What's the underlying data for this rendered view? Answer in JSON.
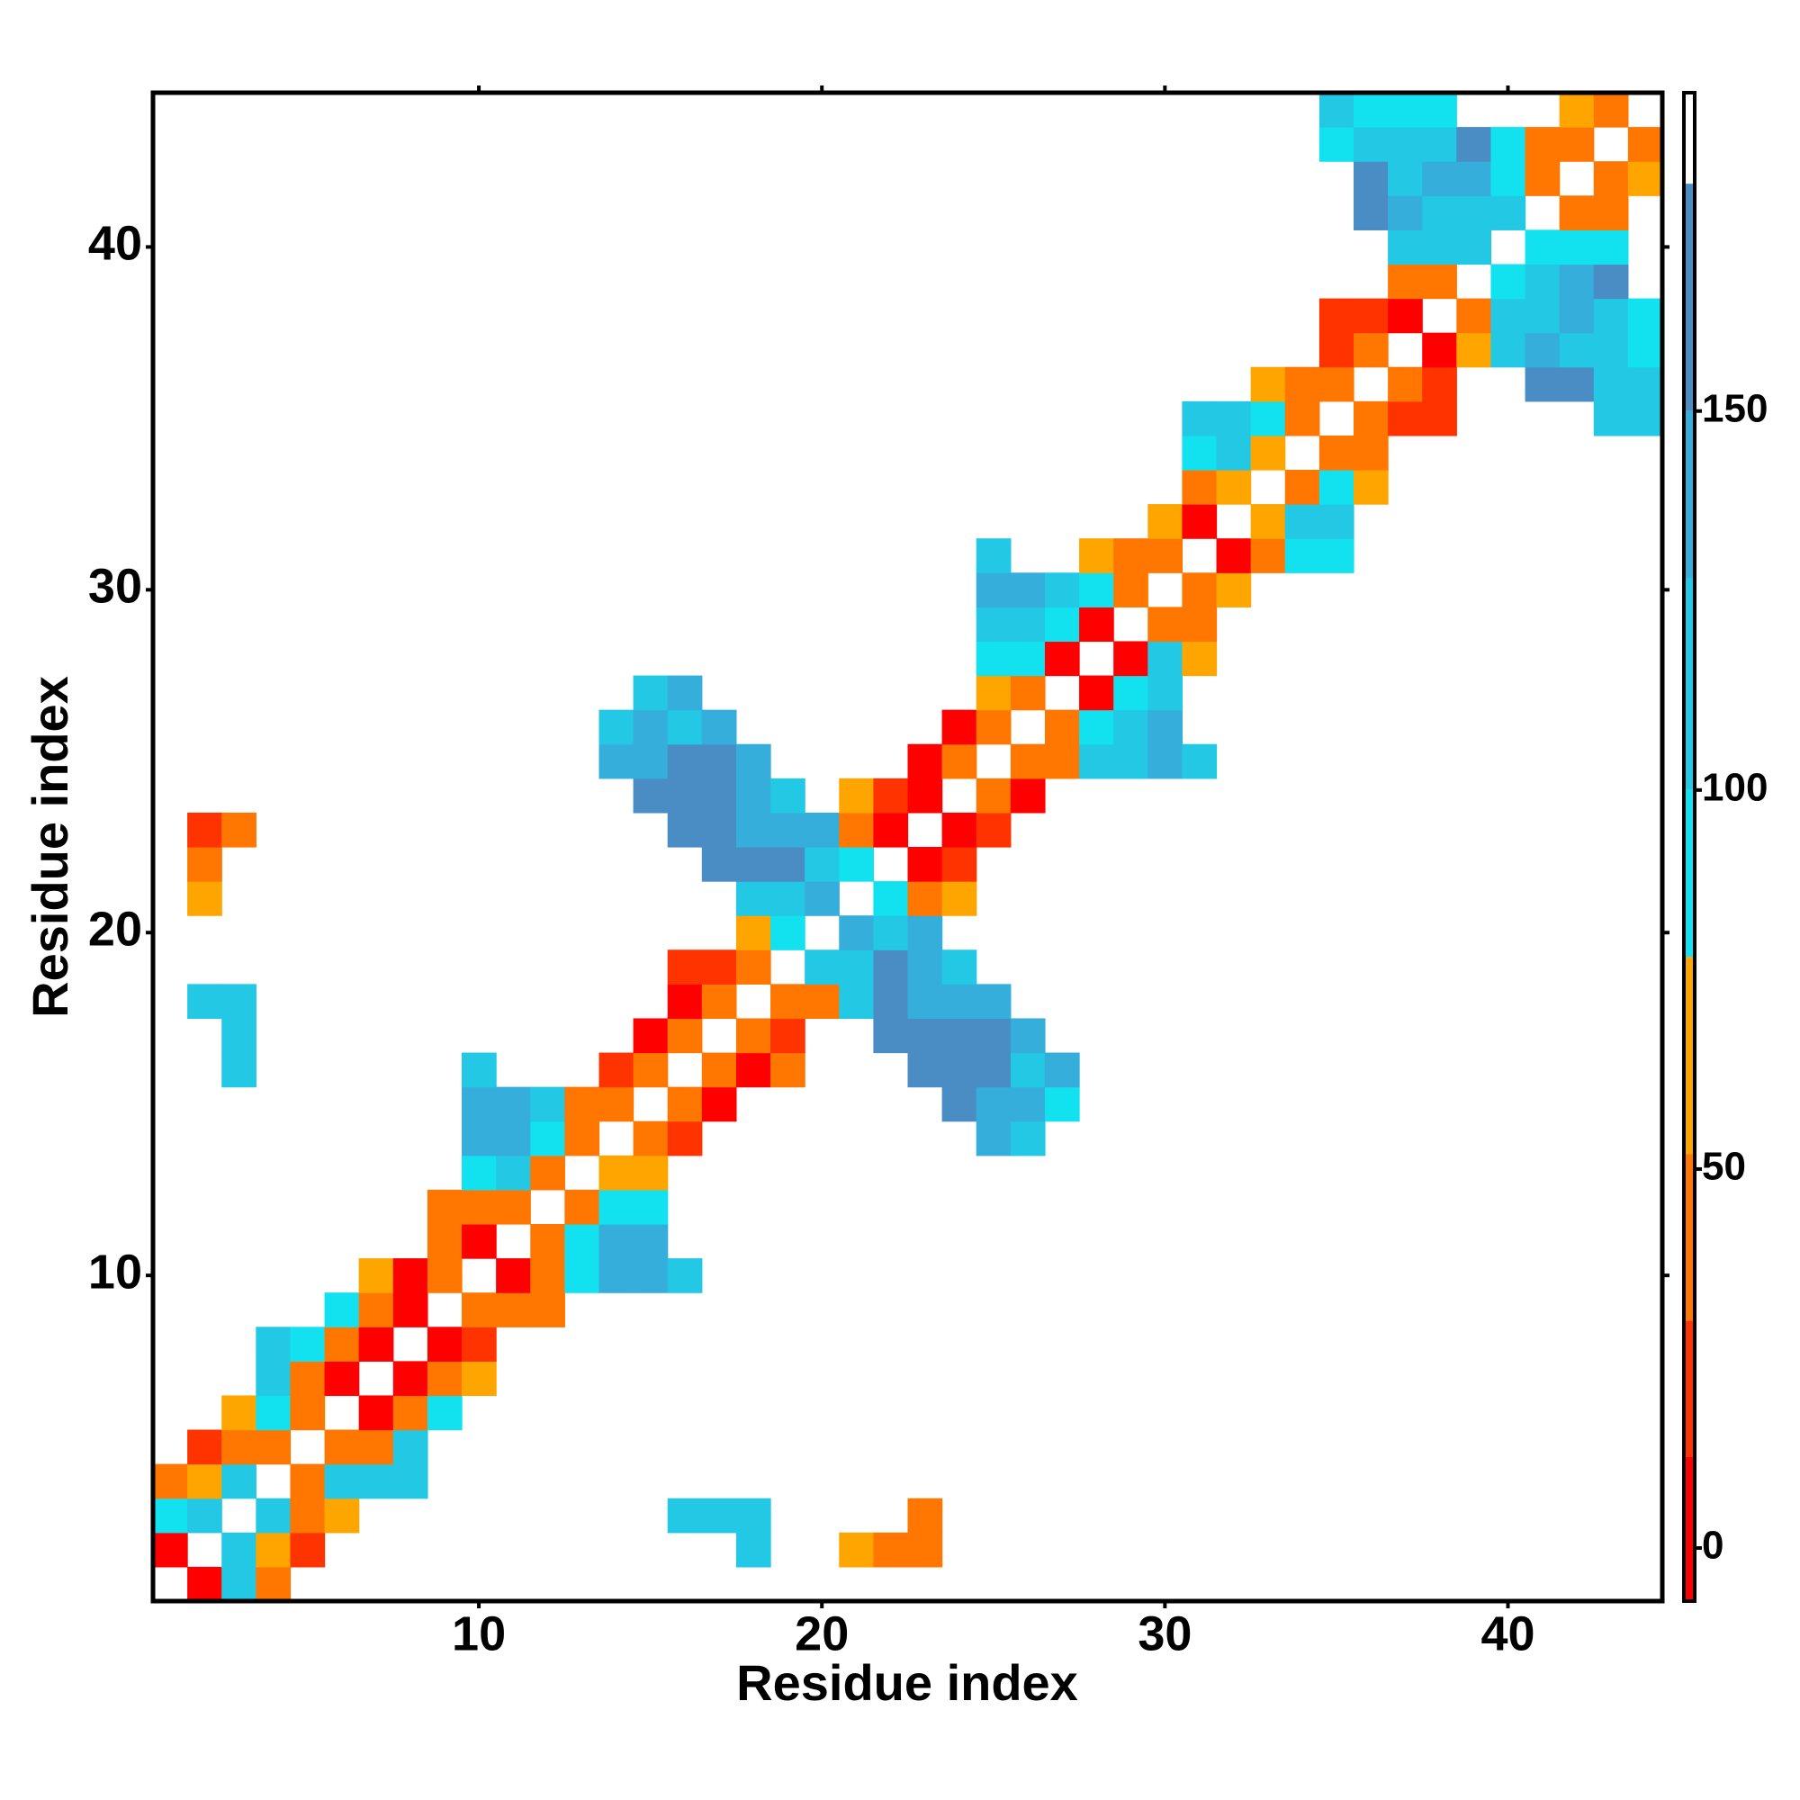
{
  "chart_data": {
    "type": "heatmap",
    "x_label": "Residue index",
    "y_label": "Residue index",
    "xlim": [
      0.5,
      44.5
    ],
    "ylim": [
      0.5,
      44.5
    ],
    "xticks": [
      10,
      20,
      30,
      40
    ],
    "yticks": [
      10,
      20,
      30,
      40
    ],
    "clim": [
      -7,
      192
    ],
    "cticks": [
      0,
      50,
      100,
      150
    ],
    "colorscale": [
      [
        -7,
        "#ff0000"
      ],
      [
        12,
        "#ff3300"
      ],
      [
        30,
        "#ff7700"
      ],
      [
        52,
        "#ffa500"
      ],
      [
        78,
        "#12e2f0"
      ],
      [
        100,
        "#22c8e4"
      ],
      [
        128,
        "#35aedb"
      ],
      [
        150,
        "#4a8cc4"
      ],
      [
        180,
        "#ffffff"
      ]
    ],
    "cells": [
      [
        2,
        1,
        5
      ],
      [
        3,
        1,
        110
      ],
      [
        4,
        1,
        40
      ],
      [
        1,
        2,
        5
      ],
      [
        3,
        2,
        110
      ],
      [
        4,
        2,
        62
      ],
      [
        5,
        2,
        20
      ],
      [
        18,
        2,
        110
      ],
      [
        21,
        2,
        62
      ],
      [
        22,
        2,
        40
      ],
      [
        23,
        2,
        40
      ],
      [
        1,
        3,
        88
      ],
      [
        2,
        3,
        110
      ],
      [
        4,
        3,
        110
      ],
      [
        5,
        3,
        40
      ],
      [
        6,
        3,
        62
      ],
      [
        16,
        3,
        110
      ],
      [
        17,
        3,
        110
      ],
      [
        18,
        3,
        110
      ],
      [
        23,
        3,
        40
      ],
      [
        1,
        4,
        40
      ],
      [
        2,
        4,
        62
      ],
      [
        3,
        4,
        110
      ],
      [
        5,
        4,
        40
      ],
      [
        6,
        4,
        110
      ],
      [
        7,
        4,
        110
      ],
      [
        8,
        4,
        110
      ],
      [
        2,
        5,
        20
      ],
      [
        3,
        5,
        40
      ],
      [
        4,
        5,
        40
      ],
      [
        6,
        5,
        40
      ],
      [
        7,
        5,
        40
      ],
      [
        8,
        5,
        110
      ],
      [
        3,
        6,
        62
      ],
      [
        4,
        6,
        88
      ],
      [
        5,
        6,
        40
      ],
      [
        7,
        6,
        5
      ],
      [
        8,
        6,
        40
      ],
      [
        9,
        6,
        88
      ],
      [
        4,
        7,
        110
      ],
      [
        5,
        7,
        40
      ],
      [
        6,
        7,
        5
      ],
      [
        8,
        7,
        5
      ],
      [
        9,
        7,
        40
      ],
      [
        10,
        7,
        62
      ],
      [
        4,
        8,
        110
      ],
      [
        5,
        8,
        88
      ],
      [
        6,
        8,
        40
      ],
      [
        7,
        8,
        5
      ],
      [
        9,
        8,
        5
      ],
      [
        10,
        8,
        20
      ],
      [
        6,
        9,
        88
      ],
      [
        7,
        9,
        40
      ],
      [
        8,
        9,
        5
      ],
      [
        10,
        9,
        40
      ],
      [
        11,
        9,
        40
      ],
      [
        12,
        9,
        40
      ],
      [
        7,
        10,
        62
      ],
      [
        8,
        10,
        5
      ],
      [
        9,
        10,
        40
      ],
      [
        11,
        10,
        5
      ],
      [
        12,
        10,
        40
      ],
      [
        13,
        10,
        88
      ],
      [
        14,
        10,
        135
      ],
      [
        15,
        10,
        135
      ],
      [
        16,
        10,
        110
      ],
      [
        9,
        11,
        40
      ],
      [
        10,
        11,
        5
      ],
      [
        12,
        11,
        40
      ],
      [
        13,
        11,
        88
      ],
      [
        14,
        11,
        135
      ],
      [
        15,
        11,
        135
      ],
      [
        9,
        12,
        40
      ],
      [
        10,
        12,
        40
      ],
      [
        11,
        12,
        40
      ],
      [
        13,
        12,
        40
      ],
      [
        14,
        12,
        88
      ],
      [
        15,
        12,
        88
      ],
      [
        10,
        13,
        88
      ],
      [
        11,
        13,
        110
      ],
      [
        12,
        13,
        40
      ],
      [
        14,
        13,
        62
      ],
      [
        15,
        13,
        62
      ],
      [
        10,
        14,
        135
      ],
      [
        11,
        14,
        135
      ],
      [
        12,
        14,
        88
      ],
      [
        13,
        14,
        40
      ],
      [
        15,
        14,
        40
      ],
      [
        16,
        14,
        20
      ],
      [
        25,
        14,
        135
      ],
      [
        26,
        14,
        110
      ],
      [
        10,
        15,
        135
      ],
      [
        11,
        15,
        135
      ],
      [
        12,
        15,
        110
      ],
      [
        13,
        15,
        40
      ],
      [
        14,
        15,
        40
      ],
      [
        16,
        15,
        40
      ],
      [
        17,
        15,
        5
      ],
      [
        24,
        15,
        165
      ],
      [
        25,
        15,
        135
      ],
      [
        26,
        15,
        135
      ],
      [
        27,
        15,
        88
      ],
      [
        3,
        16,
        110
      ],
      [
        10,
        16,
        110
      ],
      [
        14,
        16,
        20
      ],
      [
        15,
        16,
        40
      ],
      [
        17,
        16,
        40
      ],
      [
        18,
        16,
        5
      ],
      [
        19,
        16,
        40
      ],
      [
        23,
        16,
        165
      ],
      [
        24,
        16,
        165
      ],
      [
        25,
        16,
        165
      ],
      [
        26,
        16,
        110
      ],
      [
        27,
        16,
        135
      ],
      [
        3,
        17,
        110
      ],
      [
        15,
        17,
        5
      ],
      [
        16,
        17,
        40
      ],
      [
        18,
        17,
        40
      ],
      [
        19,
        17,
        20
      ],
      [
        22,
        17,
        165
      ],
      [
        23,
        17,
        165
      ],
      [
        24,
        17,
        165
      ],
      [
        25,
        17,
        165
      ],
      [
        26,
        17,
        135
      ],
      [
        2,
        18,
        110
      ],
      [
        3,
        18,
        110
      ],
      [
        16,
        18,
        5
      ],
      [
        17,
        18,
        40
      ],
      [
        19,
        18,
        40
      ],
      [
        20,
        18,
        40
      ],
      [
        21,
        18,
        110
      ],
      [
        22,
        18,
        165
      ],
      [
        23,
        18,
        135
      ],
      [
        24,
        18,
        135
      ],
      [
        25,
        18,
        135
      ],
      [
        16,
        19,
        20
      ],
      [
        17,
        19,
        20
      ],
      [
        18,
        19,
        40
      ],
      [
        20,
        19,
        110
      ],
      [
        21,
        19,
        110
      ],
      [
        22,
        19,
        165
      ],
      [
        23,
        19,
        135
      ],
      [
        24,
        19,
        110
      ],
      [
        18,
        20,
        62
      ],
      [
        19,
        20,
        88
      ],
      [
        21,
        20,
        135
      ],
      [
        22,
        20,
        110
      ],
      [
        23,
        20,
        135
      ],
      [
        2,
        21,
        62
      ],
      [
        18,
        21,
        110
      ],
      [
        19,
        21,
        110
      ],
      [
        20,
        21,
        135
      ],
      [
        22,
        21,
        88
      ],
      [
        23,
        21,
        40
      ],
      [
        24,
        21,
        62
      ],
      [
        2,
        22,
        40
      ],
      [
        17,
        22,
        165
      ],
      [
        18,
        22,
        165
      ],
      [
        19,
        22,
        165
      ],
      [
        20,
        22,
        110
      ],
      [
        21,
        22,
        88
      ],
      [
        23,
        22,
        5
      ],
      [
        24,
        22,
        20
      ],
      [
        2,
        23,
        20
      ],
      [
        3,
        23,
        40
      ],
      [
        16,
        23,
        165
      ],
      [
        17,
        23,
        165
      ],
      [
        18,
        23,
        135
      ],
      [
        19,
        23,
        135
      ],
      [
        20,
        23,
        135
      ],
      [
        21,
        23,
        40
      ],
      [
        22,
        23,
        5
      ],
      [
        24,
        23,
        5
      ],
      [
        25,
        23,
        20
      ],
      [
        15,
        24,
        165
      ],
      [
        16,
        24,
        165
      ],
      [
        17,
        24,
        165
      ],
      [
        18,
        24,
        135
      ],
      [
        19,
        24,
        110
      ],
      [
        21,
        24,
        62
      ],
      [
        22,
        24,
        20
      ],
      [
        23,
        24,
        5
      ],
      [
        25,
        24,
        40
      ],
      [
        26,
        24,
        5
      ],
      [
        14,
        25,
        135
      ],
      [
        15,
        25,
        135
      ],
      [
        16,
        25,
        165
      ],
      [
        17,
        25,
        165
      ],
      [
        18,
        25,
        135
      ],
      [
        23,
        25,
        5
      ],
      [
        24,
        25,
        40
      ],
      [
        26,
        25,
        40
      ],
      [
        27,
        25,
        40
      ],
      [
        28,
        25,
        110
      ],
      [
        29,
        25,
        110
      ],
      [
        30,
        25,
        135
      ],
      [
        31,
        25,
        110
      ],
      [
        14,
        26,
        110
      ],
      [
        15,
        26,
        135
      ],
      [
        16,
        26,
        110
      ],
      [
        17,
        26,
        135
      ],
      [
        24,
        26,
        5
      ],
      [
        25,
        26,
        40
      ],
      [
        27,
        26,
        40
      ],
      [
        28,
        26,
        88
      ],
      [
        29,
        26,
        110
      ],
      [
        30,
        26,
        135
      ],
      [
        15,
        27,
        110
      ],
      [
        16,
        27,
        135
      ],
      [
        25,
        27,
        62
      ],
      [
        26,
        27,
        40
      ],
      [
        28,
        27,
        5
      ],
      [
        29,
        27,
        88
      ],
      [
        30,
        27,
        110
      ],
      [
        25,
        28,
        88
      ],
      [
        26,
        28,
        88
      ],
      [
        27,
        28,
        5
      ],
      [
        29,
        28,
        5
      ],
      [
        30,
        28,
        110
      ],
      [
        31,
        28,
        62
      ],
      [
        25,
        29,
        110
      ],
      [
        26,
        29,
        110
      ],
      [
        27,
        29,
        88
      ],
      [
        28,
        29,
        5
      ],
      [
        30,
        29,
        40
      ],
      [
        31,
        29,
        40
      ],
      [
        25,
        30,
        135
      ],
      [
        26,
        30,
        135
      ],
      [
        27,
        30,
        110
      ],
      [
        28,
        30,
        88
      ],
      [
        29,
        30,
        40
      ],
      [
        31,
        30,
        40
      ],
      [
        32,
        30,
        62
      ],
      [
        25,
        31,
        110
      ],
      [
        28,
        31,
        62
      ],
      [
        29,
        31,
        40
      ],
      [
        30,
        31,
        40
      ],
      [
        32,
        31,
        5
      ],
      [
        33,
        31,
        40
      ],
      [
        34,
        31,
        88
      ],
      [
        35,
        31,
        88
      ],
      [
        30,
        32,
        62
      ],
      [
        31,
        32,
        5
      ],
      [
        33,
        32,
        62
      ],
      [
        34,
        32,
        110
      ],
      [
        35,
        32,
        110
      ],
      [
        31,
        33,
        40
      ],
      [
        32,
        33,
        62
      ],
      [
        34,
        33,
        40
      ],
      [
        35,
        33,
        88
      ],
      [
        36,
        33,
        62
      ],
      [
        31,
        34,
        88
      ],
      [
        32,
        34,
        110
      ],
      [
        33,
        34,
        62
      ],
      [
        35,
        34,
        40
      ],
      [
        36,
        34,
        40
      ],
      [
        31,
        35,
        110
      ],
      [
        32,
        35,
        110
      ],
      [
        33,
        35,
        88
      ],
      [
        34,
        35,
        40
      ],
      [
        36,
        35,
        40
      ],
      [
        37,
        35,
        20
      ],
      [
        38,
        35,
        20
      ],
      [
        43,
        35,
        110
      ],
      [
        44,
        35,
        110
      ],
      [
        33,
        36,
        62
      ],
      [
        34,
        36,
        40
      ],
      [
        35,
        36,
        40
      ],
      [
        37,
        36,
        40
      ],
      [
        38,
        36,
        20
      ],
      [
        41,
        36,
        165
      ],
      [
        42,
        36,
        165
      ],
      [
        43,
        36,
        110
      ],
      [
        44,
        36,
        110
      ],
      [
        35,
        37,
        20
      ],
      [
        36,
        37,
        40
      ],
      [
        38,
        37,
        5
      ],
      [
        39,
        37,
        62
      ],
      [
        40,
        37,
        110
      ],
      [
        41,
        37,
        135
      ],
      [
        42,
        37,
        110
      ],
      [
        43,
        37,
        110
      ],
      [
        44,
        37,
        88
      ],
      [
        35,
        38,
        20
      ],
      [
        36,
        38,
        20
      ],
      [
        37,
        38,
        5
      ],
      [
        39,
        38,
        40
      ],
      [
        40,
        38,
        110
      ],
      [
        41,
        38,
        110
      ],
      [
        42,
        38,
        135
      ],
      [
        43,
        38,
        110
      ],
      [
        44,
        38,
        88
      ],
      [
        37,
        39,
        40
      ],
      [
        38,
        39,
        40
      ],
      [
        40,
        39,
        88
      ],
      [
        41,
        39,
        110
      ],
      [
        42,
        39,
        135
      ],
      [
        43,
        39,
        165
      ],
      [
        37,
        40,
        110
      ],
      [
        38,
        40,
        110
      ],
      [
        39,
        40,
        110
      ],
      [
        41,
        40,
        88
      ],
      [
        42,
        40,
        88
      ],
      [
        43,
        40,
        88
      ],
      [
        36,
        41,
        165
      ],
      [
        37,
        41,
        135
      ],
      [
        38,
        41,
        110
      ],
      [
        39,
        41,
        110
      ],
      [
        40,
        41,
        110
      ],
      [
        42,
        41,
        40
      ],
      [
        43,
        41,
        40
      ],
      [
        36,
        42,
        165
      ],
      [
        37,
        42,
        110
      ],
      [
        38,
        42,
        135
      ],
      [
        39,
        42,
        135
      ],
      [
        40,
        42,
        88
      ],
      [
        41,
        42,
        40
      ],
      [
        43,
        42,
        40
      ],
      [
        44,
        42,
        62
      ],
      [
        35,
        43,
        88
      ],
      [
        36,
        43,
        110
      ],
      [
        37,
        43,
        110
      ],
      [
        38,
        43,
        110
      ],
      [
        39,
        43,
        165
      ],
      [
        40,
        43,
        88
      ],
      [
        41,
        43,
        40
      ],
      [
        42,
        43,
        40
      ],
      [
        44,
        43,
        40
      ],
      [
        35,
        44,
        110
      ],
      [
        36,
        44,
        88
      ],
      [
        37,
        44,
        88
      ],
      [
        38,
        44,
        88
      ],
      [
        42,
        44,
        62
      ],
      [
        43,
        44,
        40
      ]
    ]
  }
}
